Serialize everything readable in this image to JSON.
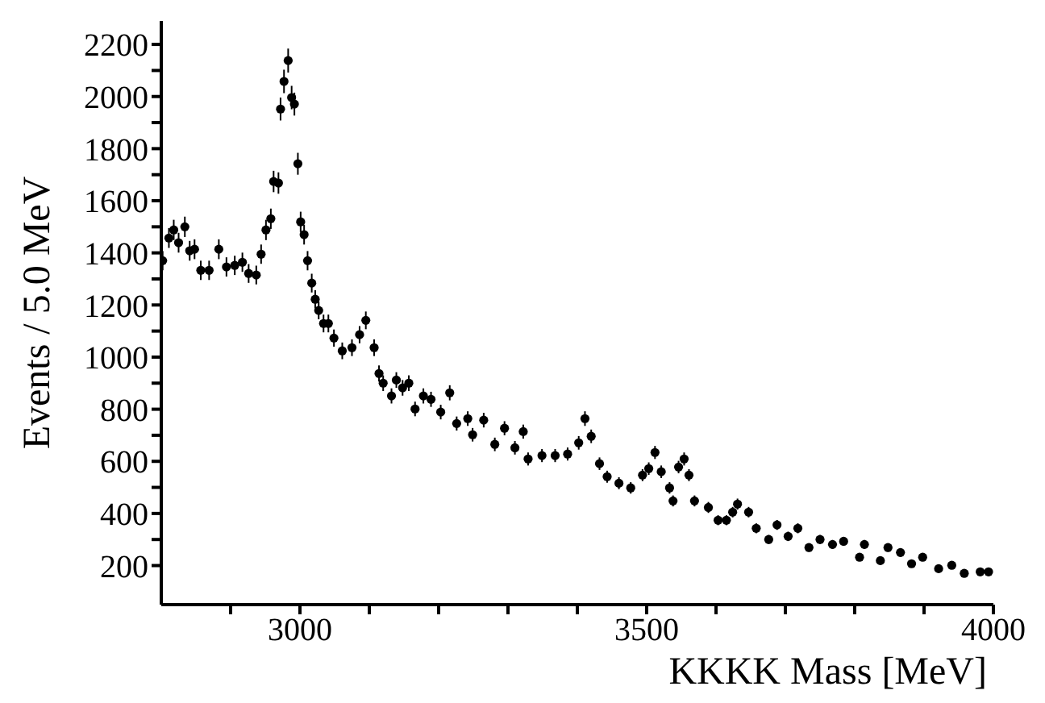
{
  "chart_data": {
    "type": "scatter",
    "xlabel": "KKKK Mass [MeV]",
    "ylabel": "Events / 5.0 MeV",
    "marker": "circle",
    "color": "#000000",
    "xlim": [
      2800,
      4000
    ],
    "ylim": [
      50,
      2290
    ],
    "xticks": [
      {
        "value": 2900,
        "label": null
      },
      3000,
      {
        "value": 3100,
        "label": null
      },
      {
        "value": 3200,
        "label": null
      },
      {
        "value": 3300,
        "label": null
      },
      {
        "value": 3400,
        "label": null
      },
      3500,
      {
        "value": 3600,
        "label": null
      },
      {
        "value": 3700,
        "label": null
      },
      {
        "value": 3800,
        "label": null
      },
      {
        "value": 3900,
        "label": null
      },
      4000
    ],
    "yticks": [
      200,
      {
        "value": 300,
        "label": null
      },
      400,
      {
        "value": 500,
        "label": null
      },
      600,
      {
        "value": 700,
        "label": null
      },
      800,
      {
        "value": 900,
        "label": null
      },
      1000,
      {
        "value": 1100,
        "label": null
      },
      1200,
      {
        "value": 1300,
        "label": null
      },
      1400,
      {
        "value": 1500,
        "label": null
      },
      1600,
      {
        "value": 1700,
        "label": null
      },
      1800,
      {
        "value": 1900,
        "label": null
      },
      2000,
      {
        "value": 2100,
        "label": null
      },
      2200
    ],
    "x": [
      2802,
      2811,
      2818,
      2825,
      2834,
      2841,
      2848,
      2857,
      2869,
      2883,
      2894,
      2906,
      2917,
      2926,
      2937,
      2944,
      2951,
      2958,
      2962,
      2969,
      2972,
      2977,
      2983,
      2988,
      2992,
      2997,
      3001,
      3006,
      3011,
      3017,
      3022,
      3027,
      3034,
      3041,
      3049,
      3061,
      3075,
      3086,
      3095,
      3107,
      3114,
      3120,
      3132,
      3139,
      3148,
      3157,
      3166,
      3178,
      3189,
      3203,
      3216,
      3226,
      3242,
      3249,
      3265,
      3281,
      3295,
      3310,
      3322,
      3329,
      3349,
      3368,
      3386,
      3402,
      3411,
      3420,
      3432,
      3443,
      3460,
      3477,
      3494,
      3503,
      3512,
      3521,
      3533,
      3538,
      3546,
      3554,
      3561,
      3569,
      3589,
      3603,
      3615,
      3624,
      3631,
      3647,
      3658,
      3676,
      3688,
      3704,
      3718,
      3734,
      3750,
      3768,
      3784,
      3807,
      3814,
      3837,
      3848,
      3866,
      3882,
      3898,
      3921,
      3940,
      3958,
      3981,
      3993
    ],
    "values": [
      1370,
      1457,
      1488,
      1439,
      1500,
      1408,
      1414,
      1333,
      1333,
      1414,
      1346,
      1352,
      1364,
      1321,
      1315,
      1395,
      1488,
      1531,
      1674,
      1668,
      1952,
      2058,
      2138,
      1996,
      1971,
      1742,
      1519,
      1470,
      1370,
      1284,
      1222,
      1179,
      1129,
      1129,
      1073,
      1024,
      1036,
      1086,
      1141,
      1036,
      937,
      900,
      851,
      912,
      882,
      900,
      801,
      851,
      838,
      789,
      863,
      745,
      764,
      702,
      758,
      665,
      727,
      652,
      714,
      609,
      622,
      622,
      628,
      671,
      764,
      696,
      591,
      541,
      516,
      498,
      547,
      572,
      634,
      560,
      498,
      448,
      578,
      609,
      547,
      448,
      423,
      374,
      374,
      405,
      436,
      405,
      343,
      300,
      356,
      312,
      343,
      269,
      300,
      281,
      293,
      232,
      281,
      219,
      269,
      250,
      207,
      232,
      188,
      201,
      170,
      176,
      176
    ],
    "errors": [
      37,
      38,
      39,
      38,
      39,
      38,
      38,
      37,
      37,
      38,
      37,
      37,
      37,
      36,
      36,
      37,
      39,
      39,
      41,
      41,
      44,
      45,
      46,
      45,
      44,
      42,
      39,
      38,
      37,
      36,
      35,
      34,
      34,
      34,
      33,
      32,
      32,
      33,
      34,
      32,
      31,
      30,
      29,
      30,
      30,
      30,
      28,
      29,
      29,
      28,
      29,
      27,
      28,
      26,
      28,
      26,
      27,
      26,
      27,
      25,
      25,
      25,
      25,
      26,
      28,
      26,
      24,
      23,
      23,
      22,
      23,
      24,
      25,
      24,
      22,
      21,
      24,
      25,
      23,
      21,
      21,
      19,
      19,
      20,
      21,
      20,
      19,
      17,
      19,
      18,
      19,
      16,
      17,
      17,
      17,
      15,
      17,
      15,
      16,
      16,
      14,
      15,
      14,
      14,
      13,
      13,
      13
    ]
  }
}
